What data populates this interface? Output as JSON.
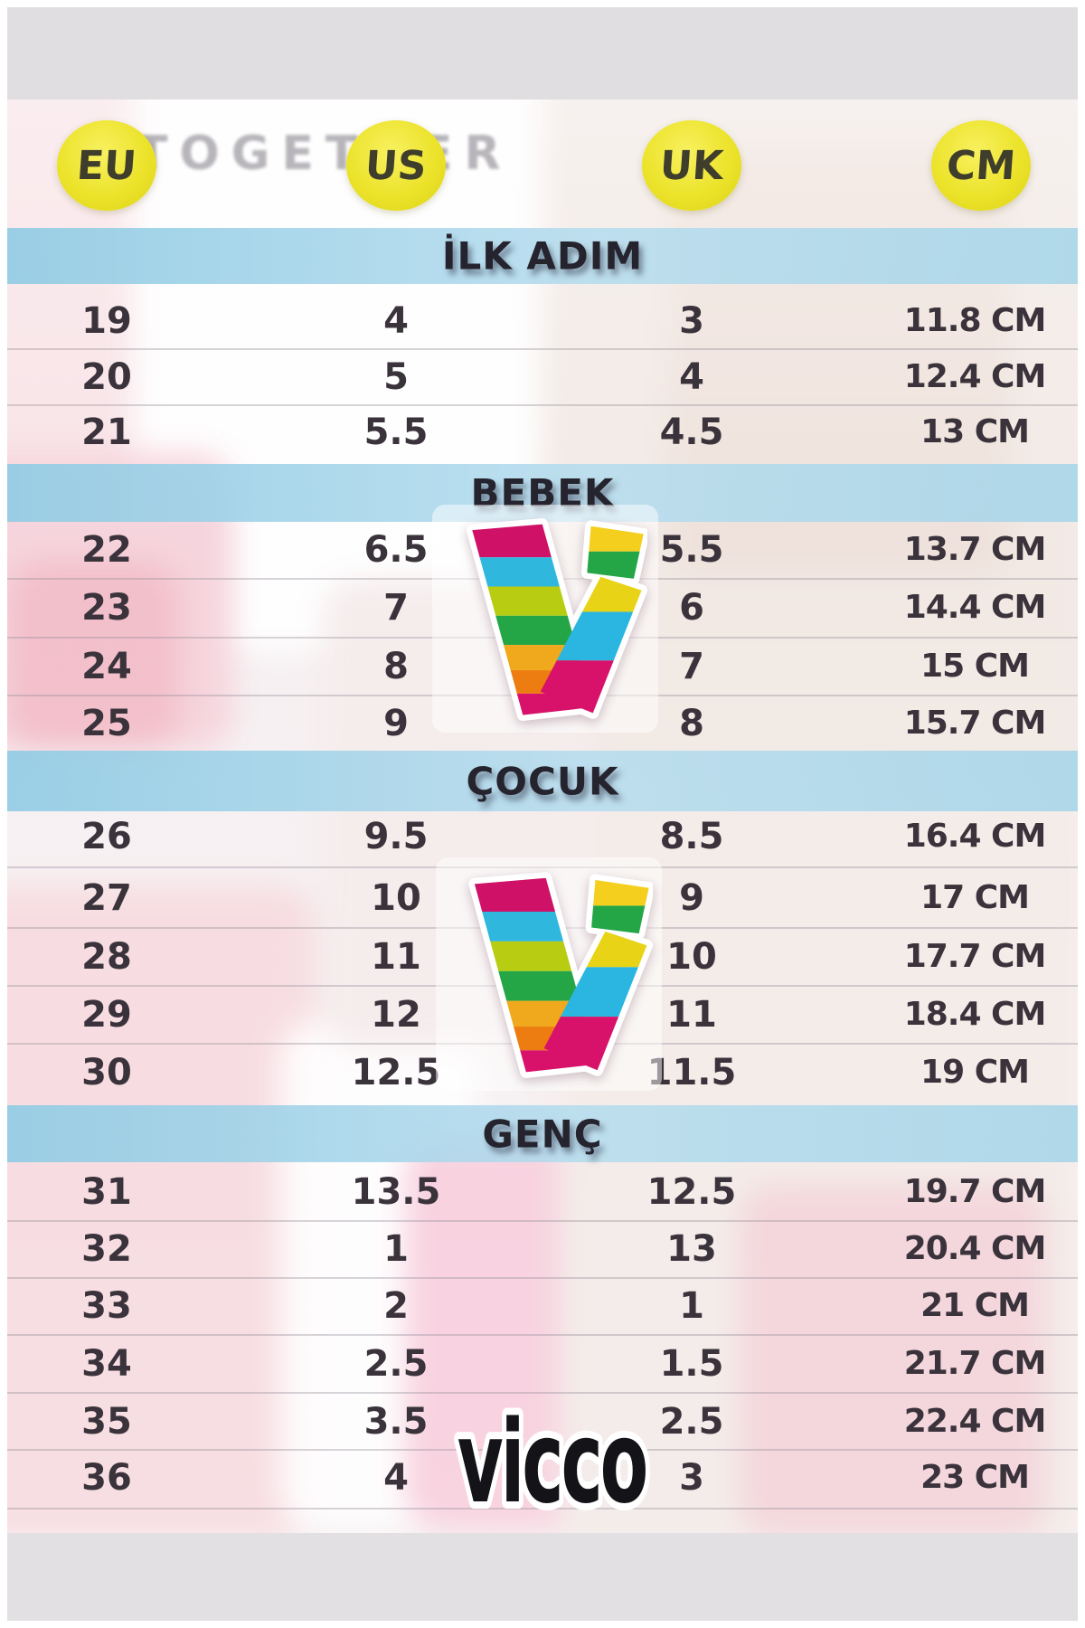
{
  "page": {
    "description": "Vicco children's shoe size conversion chart"
  },
  "columns": [
    {
      "key": "eu",
      "label": "EU"
    },
    {
      "key": "us",
      "label": "US"
    },
    {
      "key": "uk",
      "label": "UK"
    },
    {
      "key": "cm",
      "label": "CM"
    }
  ],
  "background": {
    "shirt_text": "TOGETHER"
  },
  "brand": {
    "wordmark": "vicco",
    "logo": "vicco-rainbow-v-logo"
  },
  "sections": [
    {
      "label": "İLK ADIM",
      "rows": [
        [
          "19",
          "4",
          "3",
          "11.8 CM"
        ],
        [
          "20",
          "5",
          "4",
          "12.4 CM"
        ],
        [
          "21",
          "5.5",
          "4.5",
          "13 CM"
        ]
      ]
    },
    {
      "label": "BEBEK",
      "has_logo": true,
      "rows": [
        [
          "22",
          "6.5",
          "5.5",
          "13.7 CM"
        ],
        [
          "23",
          "7",
          "6",
          "14.4 CM"
        ],
        [
          "24",
          "8",
          "7",
          "15 CM"
        ],
        [
          "25",
          "9",
          "8",
          "15.7 CM"
        ]
      ]
    },
    {
      "label": "ÇOCUK",
      "has_logo": true,
      "rows": [
        [
          "26",
          "9.5",
          "8.5",
          "16.4 CM"
        ],
        [
          "27",
          "10",
          "9",
          "17 CM"
        ],
        [
          "28",
          "11",
          "10",
          "17.7 CM"
        ],
        [
          "29",
          "12",
          "11",
          "18.4 CM"
        ],
        [
          "30",
          "12.5",
          "11.5",
          "19 CM"
        ]
      ]
    },
    {
      "label": "GENÇ",
      "has_wordmark": true,
      "rows": [
        [
          "31",
          "13.5",
          "12.5",
          "19.7 CM"
        ],
        [
          "32",
          "1",
          "13",
          "20.4 CM"
        ],
        [
          "33",
          "2",
          "1",
          "21 CM"
        ],
        [
          "34",
          "2.5",
          "1.5",
          "21.7 CM"
        ],
        [
          "35",
          "3.5",
          "2.5",
          "22.4 CM"
        ],
        [
          "36",
          "4",
          "3",
          "23 CM"
        ]
      ]
    }
  ],
  "colors": {
    "header_circle": "#ece32b",
    "section_band": "#a8d6e9",
    "number_text": "#3a333b",
    "wordmark_text": "#141318",
    "logo_stripes": [
      "#cf1167",
      "#2fb7dd",
      "#b8cc12",
      "#24a647",
      "#f0a81c",
      "#ee7d11",
      "#d8116a"
    ]
  }
}
